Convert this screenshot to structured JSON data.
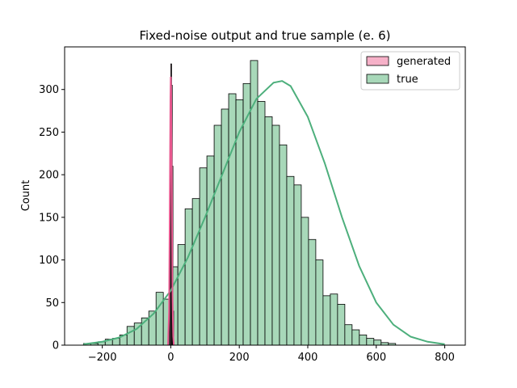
{
  "chart_data": {
    "type": "histogram",
    "title": "Fixed-noise output and true sample (e. 6)",
    "xlabel": "",
    "ylabel": "Count",
    "xlim": [
      -310,
      860
    ],
    "ylim": [
      0,
      350
    ],
    "xticks": [
      -200,
      0,
      200,
      400,
      600,
      800
    ],
    "yticks": [
      0,
      50,
      100,
      150,
      200,
      250,
      300
    ],
    "grid": false,
    "legend": {
      "position": "top-right",
      "entries": [
        "generated",
        "true"
      ]
    },
    "series": [
      {
        "name": "true",
        "color": "#4daf7c",
        "fill": "#a8d8b9",
        "bin_start": -255,
        "bin_width": 21.2,
        "counts": [
          2,
          2,
          4,
          7,
          8,
          12,
          22,
          26,
          32,
          40,
          62,
          54,
          92,
          118,
          160,
          172,
          208,
          222,
          258,
          277,
          295,
          288,
          307,
          334,
          286,
          268,
          258,
          235,
          198,
          188,
          150,
          124,
          100,
          58,
          60,
          48,
          24,
          18,
          12,
          8,
          6,
          3,
          2
        ],
        "kde": [
          [
            -255,
            1
          ],
          [
            -200,
            4
          ],
          [
            -150,
            9
          ],
          [
            -100,
            19
          ],
          [
            -50,
            37
          ],
          [
            0,
            64
          ],
          [
            50,
            103
          ],
          [
            100,
            150
          ],
          [
            150,
            200
          ],
          [
            200,
            250
          ],
          [
            250,
            289
          ],
          [
            300,
            308
          ],
          [
            325,
            310
          ],
          [
            350,
            304
          ],
          [
            400,
            268
          ],
          [
            450,
            213
          ],
          [
            500,
            150
          ],
          [
            550,
            93
          ],
          [
            600,
            50
          ],
          [
            650,
            24
          ],
          [
            700,
            10
          ],
          [
            750,
            4
          ],
          [
            800,
            1
          ]
        ]
      },
      {
        "name": "generated",
        "color": "#e8588f",
        "fill": "#f6b1c8",
        "bars": [
          {
            "x0": -2,
            "x1": 0,
            "count": 275
          },
          {
            "x0": 0,
            "x1": 2,
            "count": 330
          },
          {
            "x0": 2,
            "x1": 4,
            "count": 305
          },
          {
            "x0": 4,
            "x1": 6,
            "count": 210
          },
          {
            "x0": -4,
            "x1": -2,
            "count": 60
          },
          {
            "x0": 6,
            "x1": 8,
            "count": 40
          }
        ],
        "kde": [
          [
            -8,
            0
          ],
          [
            -5,
            40
          ],
          [
            -3,
            150
          ],
          [
            -1,
            290
          ],
          [
            0,
            315
          ],
          [
            1,
            300
          ],
          [
            3,
            180
          ],
          [
            5,
            60
          ],
          [
            7,
            10
          ],
          [
            9,
            0
          ]
        ]
      }
    ]
  }
}
